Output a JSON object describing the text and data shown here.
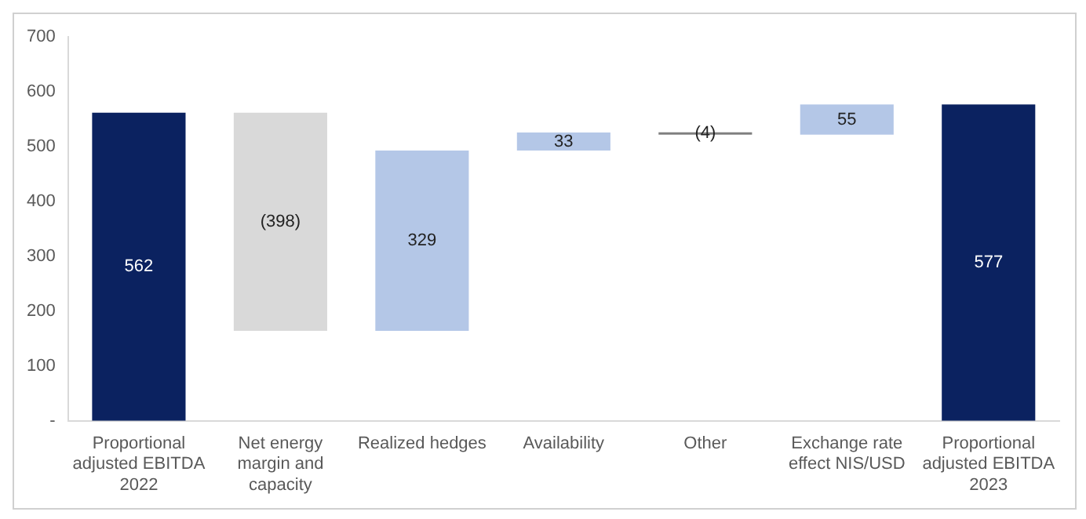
{
  "chart_data": {
    "type": "bar",
    "categories": [
      "Proportional adjusted EBITDA 2022",
      "Net energy margin and capacity",
      "Realized hedges",
      "Availability",
      "Other",
      "Exchange rate effect NIS/USD",
      "Proportional adjusted EBITDA 2023"
    ],
    "values": [
      562,
      -398,
      329,
      33,
      -4,
      55,
      577
    ],
    "base": [
      0,
      562,
      164,
      493,
      526,
      522,
      0
    ],
    "colors": [
      "#0b2260",
      "#d9d9d9",
      "#b4c7e7",
      "#b4c7e7",
      "#7f7f7f",
      "#b4c7e7",
      "#0b2260"
    ],
    "value_labels": [
      "562",
      "(398)",
      "329",
      "33",
      "(4)",
      "55",
      "577"
    ],
    "ylim": [
      0,
      700
    ],
    "yticks": [
      {
        "value": 0,
        "label": "-"
      },
      100,
      200,
      300,
      400,
      500,
      600,
      700
    ],
    "grid": false,
    "legend": false
  }
}
